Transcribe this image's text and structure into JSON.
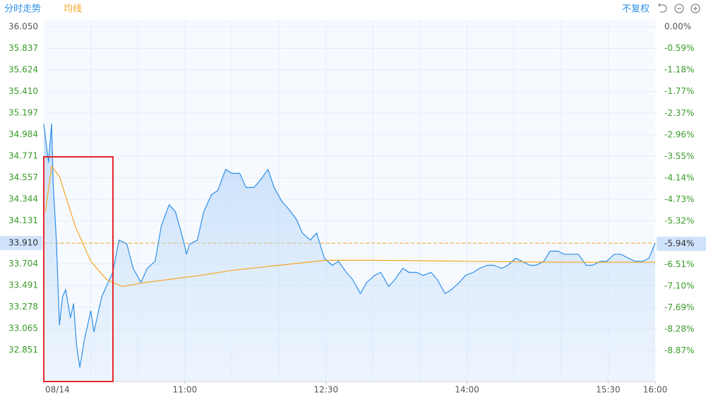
{
  "chart_data": {
    "type": "line",
    "title": "分时走势",
    "adjust_mode": "不复权",
    "series": [
      {
        "color": "#2f8fe8",
        "fill": true,
        "x": [
          "09:30",
          "09:33",
          "09:35",
          "09:36",
          "09:38",
          "09:40",
          "09:42",
          "09:44",
          "09:47",
          "09:49",
          "09:51",
          "09:53",
          "09:56",
          "09:58",
          "10:00",
          "10:02",
          "10:05",
          "10:07",
          "10:09",
          "10:14",
          "10:18",
          "10:23",
          "10:27",
          "10:32",
          "10:36",
          "10:41",
          "10:45",
          "10:50",
          "10:54",
          "10:59",
          "11:01",
          "11:03",
          "11:08",
          "11:12",
          "11:17",
          "11:21",
          "11:26",
          "11:30",
          "11:35",
          "11:39",
          "11:44",
          "11:48",
          "11:53",
          "11:57",
          "12:02",
          "12:06",
          "12:11",
          "12:15",
          "12:20",
          "12:24",
          "12:29",
          "12:34",
          "12:38",
          "12:43",
          "12:47",
          "12:52",
          "12:56",
          "13:01",
          "13:05",
          "13:10",
          "13:14",
          "13:19",
          "13:23",
          "13:28",
          "13:32",
          "13:37",
          "13:41",
          "13:46",
          "13:50",
          "13:55",
          "13:59",
          "14:04",
          "14:08",
          "14:13",
          "14:17",
          "14:22",
          "14:26",
          "14:31",
          "14:35",
          "14:40",
          "14:44",
          "14:49",
          "14:53",
          "14:58",
          "15:02",
          "15:07",
          "15:11",
          "15:16",
          "15:20",
          "15:25",
          "15:29",
          "15:34",
          "15:38",
          "15:43",
          "15:47",
          "15:52",
          "15:56",
          "16:00"
        ],
        "values": [
          35.09,
          34.71,
          35.09,
          34.5,
          33.94,
          33.1,
          33.38,
          33.45,
          33.17,
          33.31,
          32.89,
          32.68,
          32.96,
          33.1,
          33.24,
          33.03,
          33.24,
          33.38,
          33.45,
          33.62,
          33.94,
          33.9,
          33.66,
          33.52,
          33.66,
          33.73,
          34.08,
          34.29,
          34.22,
          33.94,
          33.8,
          33.9,
          33.94,
          34.22,
          34.39,
          34.43,
          34.64,
          34.6,
          34.6,
          34.46,
          34.46,
          34.53,
          34.64,
          34.46,
          34.32,
          34.25,
          34.15,
          34.01,
          33.94,
          34.01,
          33.76,
          33.69,
          33.73,
          33.62,
          33.55,
          33.41,
          33.52,
          33.59,
          33.62,
          33.48,
          33.55,
          33.66,
          33.62,
          33.62,
          33.59,
          33.62,
          33.55,
          33.41,
          33.45,
          33.52,
          33.59,
          33.62,
          33.66,
          33.69,
          33.69,
          33.66,
          33.69,
          33.76,
          33.73,
          33.69,
          33.69,
          33.73,
          33.83,
          33.83,
          33.8,
          33.8,
          33.8,
          33.69,
          33.69,
          33.73,
          33.73,
          33.8,
          33.8,
          33.76,
          33.73,
          33.73,
          33.76,
          33.91
        ]
      },
      {
        "name": "均线",
        "color": "#f5a623",
        "fill": false,
        "x": [
          "09:31",
          "09:35",
          "09:40",
          "09:50",
          "10:00",
          "10:10",
          "10:20",
          "10:35",
          "10:50",
          "11:10",
          "11:30",
          "12:00",
          "12:30",
          "13:00",
          "14:00",
          "15:00",
          "16:00"
        ],
        "values": [
          34.22,
          34.67,
          34.57,
          34.08,
          33.73,
          33.55,
          33.48,
          33.52,
          33.55,
          33.59,
          33.64,
          33.69,
          33.74,
          33.74,
          33.73,
          33.72,
          33.72
        ]
      }
    ],
    "reference_line": {
      "value": 33.91,
      "color": "#f5a623"
    },
    "ylim": [
      32.54,
      36.05
    ],
    "yticks": [
      {
        "value": 36.05,
        "label": "36.050"
      },
      {
        "value": 35.837,
        "label": "35.837"
      },
      {
        "value": 35.624,
        "label": "35.624"
      },
      {
        "value": 35.41,
        "label": "35.410"
      },
      {
        "value": 35.197,
        "label": "35.197"
      },
      {
        "value": 34.984,
        "label": "34.984"
      },
      {
        "value": 34.771,
        "label": "34.771"
      },
      {
        "value": 34.557,
        "label": "34.557"
      },
      {
        "value": 34.344,
        "label": "34.344"
      },
      {
        "value": 34.131,
        "label": "34.131"
      },
      {
        "value": 33.91,
        "label": "33.910"
      },
      {
        "value": 33.704,
        "label": "33.704"
      },
      {
        "value": 33.491,
        "label": "33.491"
      },
      {
        "value": 33.278,
        "label": "33.278"
      },
      {
        "value": 33.065,
        "label": "33.065"
      },
      {
        "value": 32.851,
        "label": "32.851"
      }
    ],
    "y2lim": [
      -9.71,
      0
    ],
    "y2ticks": [
      {
        "value": 0,
        "label": "0.00%"
      },
      {
        "value": -0.59,
        "label": "-0.59%"
      },
      {
        "value": -1.18,
        "label": "-1.18%"
      },
      {
        "value": -1.77,
        "label": "-1.77%"
      },
      {
        "value": -2.37,
        "label": "-2.37%"
      },
      {
        "value": -2.96,
        "label": "-2.96%"
      },
      {
        "value": -3.55,
        "label": "-3.55%"
      },
      {
        "value": -4.14,
        "label": "-4.14%"
      },
      {
        "value": -4.73,
        "label": "-4.73%"
      },
      {
        "value": -5.32,
        "label": "-5.32%"
      },
      {
        "value": -5.94,
        "label": "-5.94%"
      },
      {
        "value": -6.51,
        "label": "-6.51%"
      },
      {
        "value": -7.1,
        "label": "-7.10%"
      },
      {
        "value": -7.69,
        "label": "-7.69%"
      },
      {
        "value": -8.28,
        "label": "-8.28%"
      },
      {
        "value": -8.87,
        "label": "-8.87%"
      }
    ],
    "xlim": [
      "09:30",
      "16:00"
    ],
    "xticks": [
      {
        "value": "09:30",
        "label": "08/14"
      },
      {
        "value": "11:00",
        "label": "11:00"
      },
      {
        "value": "12:30",
        "label": "12:30"
      },
      {
        "value": "14:00",
        "label": "14:00"
      },
      {
        "value": "15:30",
        "label": "15:30"
      },
      {
        "value": "16:00",
        "label": "16:00"
      }
    ],
    "xgrid": [
      "10:00",
      "10:30",
      "11:00",
      "11:30",
      "12:00",
      "12:30",
      "13:00",
      "13:30",
      "14:00",
      "14:30",
      "15:00",
      "15:30"
    ],
    "grid": true
  }
}
